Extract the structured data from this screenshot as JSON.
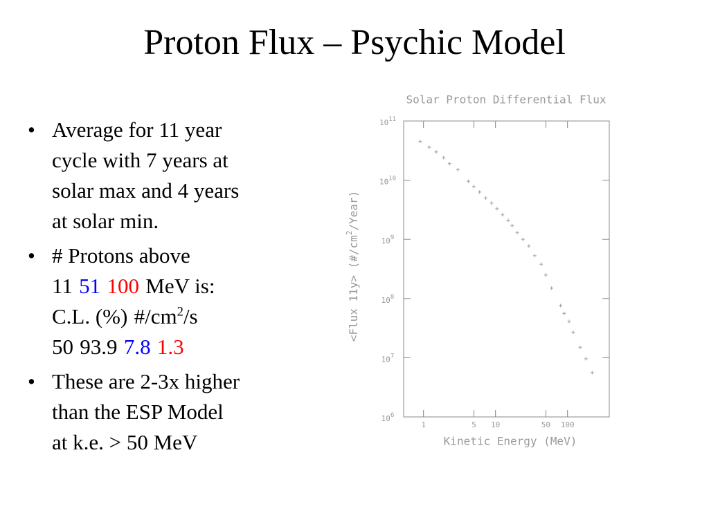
{
  "title": "Proton Flux – Psychic Model",
  "bullets": [
    {
      "lines": [
        [
          {
            "text": "Average for 11 year"
          }
        ],
        [
          {
            "text": "cycle with 7 years at"
          }
        ],
        [
          {
            "text": "solar max and 4 years"
          }
        ],
        [
          {
            "text": "at solar min."
          }
        ]
      ]
    },
    {
      "lines": [
        [
          {
            "text": "# Protons above"
          }
        ],
        [
          {
            "text": "11"
          },
          {
            "text": "51",
            "color": "#0000ff"
          },
          {
            "text": "100",
            "color": "#ff0000"
          },
          {
            "text": "MeV is:"
          }
        ],
        [
          {
            "text": "C.L. (%)"
          },
          {
            "text": "#/cm"
          },
          {
            "text": "2",
            "sup": true
          },
          {
            "text": "/s"
          }
        ],
        [
          {
            "text": "50"
          },
          {
            "text": "93.9"
          },
          {
            "text": "7.8",
            "color": "#0000ff"
          },
          {
            "text": "1.3",
            "color": "#ff0000"
          }
        ]
      ]
    },
    {
      "lines": [
        [
          {
            "text": "These are 2-3x higher"
          }
        ],
        [
          {
            "text": "than the ESP Model"
          }
        ],
        [
          {
            "text": "at k.e. > 50 MeV"
          }
        ]
      ]
    }
  ],
  "chart_data": {
    "type": "scatter",
    "title": "Solar Proton Differential Flux",
    "xlabel": "Kinetic Energy (MeV)",
    "ylabel": [
      {
        "text": "<Flux 11y> (#/cm"
      },
      {
        "text": "2",
        "sup": true
      },
      {
        "text": "/Year)"
      }
    ],
    "x": [
      0.9,
      1.2,
      1.5,
      1.9,
      2.3,
      3.0,
      4.2,
      5,
      6,
      7.3,
      8.8,
      10.5,
      12.5,
      15,
      17,
      20,
      24,
      29,
      35,
      43,
      50,
      60,
      80,
      90,
      105,
      120,
      150,
      180,
      220
    ],
    "values": [
      45000000000,
      36000000000,
      30000000000,
      24000000000,
      19000000000,
      15000000000,
      9600000000,
      7800000000,
      6300000000,
      5000000000,
      4100000000,
      3300000000,
      2600000000,
      2100000000,
      1700000000,
      1300000000,
      1000000000,
      770000000,
      530000000,
      380000000,
      250000000,
      150000000,
      76000000,
      56000000,
      41000000,
      27000000,
      15000000,
      9600000,
      5600000
    ],
    "color": "#aaaaaa",
    "xscale": "log",
    "yscale": "log",
    "xlim": [
      0.53,
      380
    ],
    "ylim": [
      1000000,
      100000000000
    ],
    "xticks": [
      1,
      5,
      10,
      50,
      100
    ],
    "yticks": [
      {
        "value": 1000000,
        "label": "10",
        "sup": "6"
      },
      {
        "value": 10000000,
        "label": "10",
        "sup": "7"
      },
      {
        "value": 100000000,
        "label": "10",
        "sup": "8"
      },
      {
        "value": 1000000000,
        "label": "10",
        "sup": "9"
      },
      {
        "value": 10000000000,
        "label": "10",
        "sup": "10"
      },
      {
        "value": 100000000000,
        "label": "10",
        "sup": "11"
      }
    ]
  }
}
